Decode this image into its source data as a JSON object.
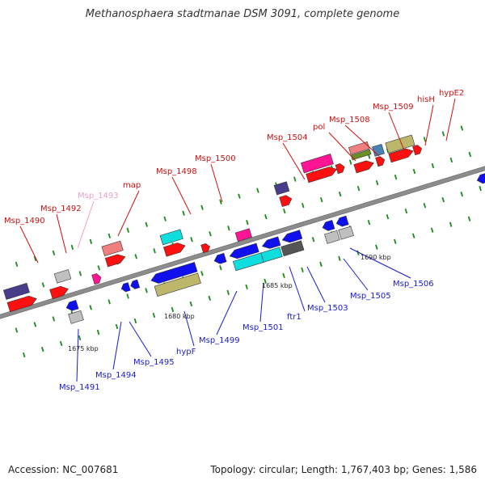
{
  "title": "Methanosphaera stadtmanae DSM 3091, complete genome",
  "footer": {
    "accession": "Accession: NC_007681",
    "topology": "Topology: circular; Length: 1,767,403 bp; Genes: 1,586"
  },
  "colors": {
    "backbone": "#8c8c8c",
    "label_top": "#cc1111",
    "label_top_pale": "#f0a0c8",
    "label_bottom": "#1a1acc",
    "tick": "#1a8a1a",
    "gene_red": "#ff1010",
    "gene_blue": "#1010ee",
    "gene_cyan": "#10dede",
    "gene_pink": "#ff1493",
    "gene_salmon": "#f08080",
    "gene_gray": "#c0c0c0",
    "gene_dark": "#555555",
    "gene_purple": "#483d8b",
    "gene_olive": "#bdb76b",
    "gene_green": "#6b8e23",
    "gene_steel": "#4682b4"
  },
  "scale_labels": [
    "1675 kbp",
    "1680 kbp",
    "1685 kbp",
    "1690 kbp"
  ],
  "genes_top": [
    {
      "name": "Msp_1490",
      "pale": false
    },
    {
      "name": "Msp_1492",
      "pale": false
    },
    {
      "name": "Msp_1493",
      "pale": true
    },
    {
      "name": "map",
      "pale": false
    },
    {
      "name": "Msp_1498",
      "pale": false
    },
    {
      "name": "Msp_1500",
      "pale": false
    },
    {
      "name": "Msp_1504",
      "pale": false
    },
    {
      "name": "pol",
      "pale": false
    },
    {
      "name": "Msp_1508",
      "pale": false
    },
    {
      "name": "Msp_1509",
      "pale": false
    },
    {
      "name": "hisH",
      "pale": false
    },
    {
      "name": "hypE2",
      "pale": false
    }
  ],
  "genes_bottom": [
    {
      "name": "Msp_1491"
    },
    {
      "name": "Msp_1494"
    },
    {
      "name": "Msp_1495"
    },
    {
      "name": "hypF"
    },
    {
      "name": "Msp_1499"
    },
    {
      "name": "Msp_1501"
    },
    {
      "name": "ftr1"
    },
    {
      "name": "Msp_1503"
    },
    {
      "name": "Msp_1505"
    },
    {
      "name": "Msp_1506"
    }
  ]
}
